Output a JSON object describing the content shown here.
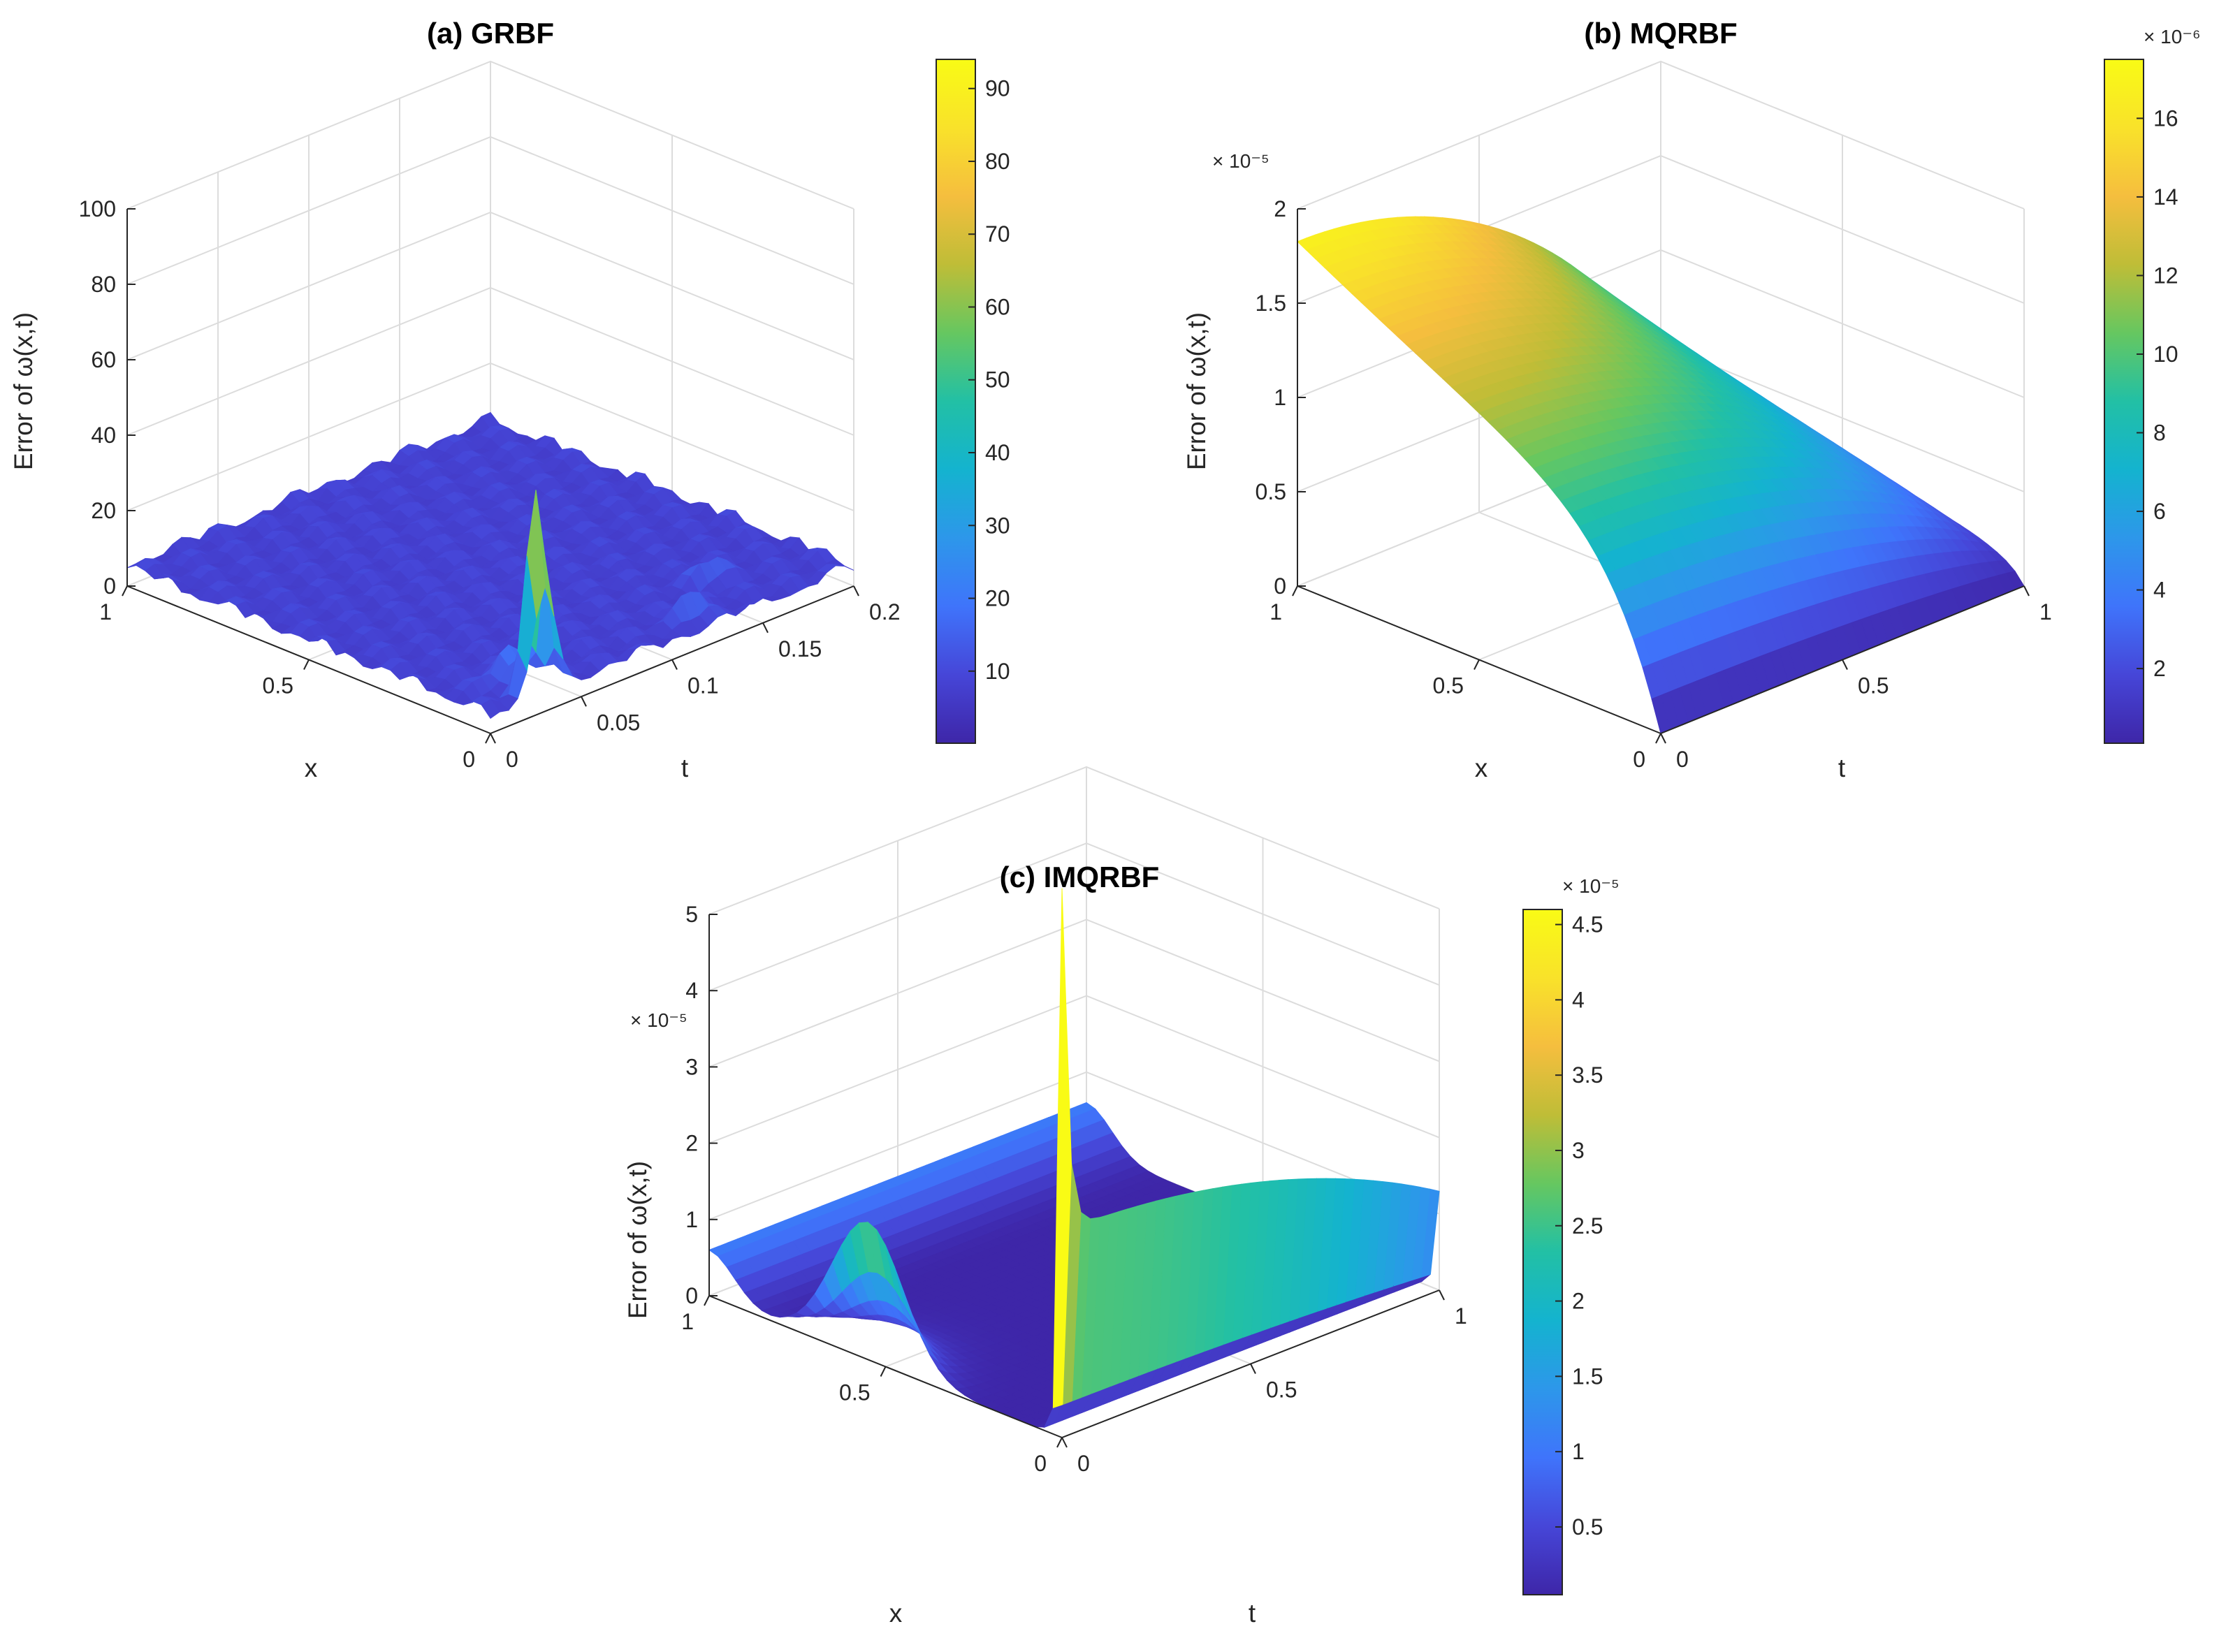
{
  "figure": {
    "description_id": "rbf-error-surfaces"
  },
  "colormap": [
    "#3e26a8",
    "#4646d8",
    "#3f74fb",
    "#2d97ea",
    "#14b3cf",
    "#22c0a5",
    "#66c760",
    "#bfbd37",
    "#f5be3e",
    "#f9e22a",
    "#f9fb15"
  ],
  "chart_data": [
    {
      "type": "surface",
      "title": "(a) GRBF",
      "xlabel": "x",
      "ylabel": "t",
      "zlabel": "Error of ω(x,t)",
      "xlim": [
        0,
        1
      ],
      "ylim": [
        0,
        0.2
      ],
      "zlim": [
        0,
        100
      ],
      "xticks": [
        "0",
        "0.5",
        "1"
      ],
      "yticks": [
        "0",
        "0.05",
        "0.1",
        "0.15",
        "0.2"
      ],
      "zticks": [
        "0",
        "20",
        "40",
        "60",
        "80",
        "100"
      ],
      "z_exponent": "",
      "colorbar": {
        "ticks": [
          "10",
          "20",
          "30",
          "40",
          "50",
          "60",
          "70",
          "80",
          "90"
        ],
        "range": [
          0.1,
          94
        ],
        "exponent": ""
      },
      "surface_description": "mostly flat noisy error near 0-10 with a sharp spike of about 60 near x=0, t=0.03"
    },
    {
      "type": "surface",
      "title": "(b) MQRBF",
      "xlabel": "x",
      "ylabel": "t",
      "zlabel": "Error of ω(x,t)",
      "xlim": [
        0,
        1
      ],
      "ylim": [
        0,
        1
      ],
      "zlim": [
        0,
        2
      ],
      "xticks": [
        "0",
        "0.5",
        "1"
      ],
      "yticks": [
        "0",
        "0.5",
        "1"
      ],
      "zticks": [
        "0",
        "0.5",
        "1",
        "1.5",
        "2"
      ],
      "z_exponent": "× 10⁻⁵",
      "colorbar": {
        "ticks": [
          "2",
          "4",
          "6",
          "8",
          "10",
          "12",
          "14",
          "16"
        ],
        "range": [
          0.1,
          17.5
        ],
        "exponent": "× 10⁻⁶"
      },
      "surface_description": "smooth dome with peak about 1.8e-5 near x=1, t=0 decreasing toward x=0 and t=1"
    },
    {
      "type": "surface",
      "title": "(c) IMQRBF",
      "xlabel": "x",
      "ylabel": "t",
      "zlabel": "Error of ω(x,t)",
      "xlim": [
        0,
        1
      ],
      "ylim": [
        0,
        1
      ],
      "zlim": [
        0,
        5
      ],
      "xticks": [
        "0",
        "0.5",
        "1"
      ],
      "yticks": [
        "0",
        "0.5",
        "1"
      ],
      "zticks": [
        "0",
        "1",
        "2",
        "3",
        "4",
        "5"
      ],
      "z_exponent": "× 10⁻⁵",
      "colorbar": {
        "ticks": [
          "0.5",
          "1",
          "1.5",
          "2",
          "2.5",
          "3",
          "3.5",
          "4",
          "4.5"
        ],
        "range": [
          0.05,
          4.6
        ],
        "exponent": "× 10⁻⁵"
      },
      "surface_description": "sharp ridge up to about 4.5e-5 along x=0 for small t, plateau about 2.7e-5 across t at x=0, lower bump near x=1"
    }
  ]
}
